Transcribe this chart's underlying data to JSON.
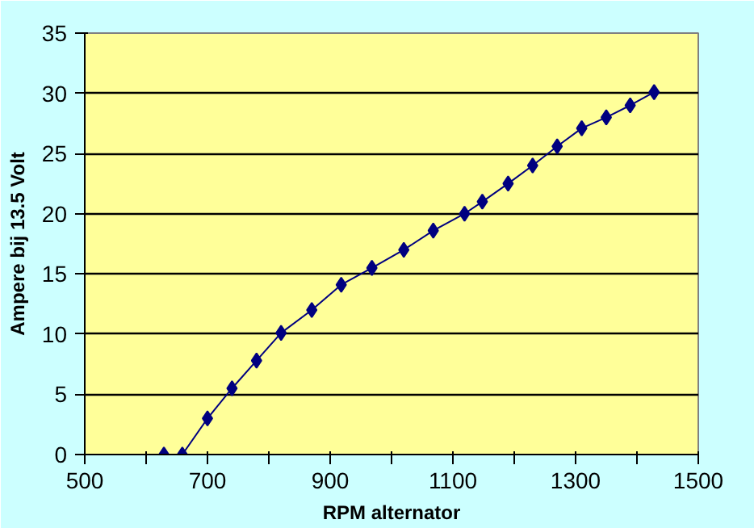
{
  "chart_data": {
    "type": "line",
    "xlabel": "RPM alternator",
    "ylabel": "Ampere bij 13.5 Volt",
    "x": [
      629,
      659,
      700,
      740,
      780,
      820,
      870,
      918,
      968,
      1020,
      1068,
      1119,
      1148,
      1190,
      1230,
      1270,
      1310,
      1350,
      1389,
      1428
    ],
    "series": [
      {
        "color": "#000080",
        "values": [
          0,
          0,
          3.0,
          5.5,
          7.8,
          10.1,
          12.0,
          14.1,
          15.5,
          17.0,
          18.6,
          20.0,
          21.0,
          22.5,
          24.0,
          25.6,
          27.1,
          28.0,
          29.0,
          30.1
        ]
      }
    ],
    "xlim": [
      500,
      1500
    ],
    "xticks": [
      500,
      {
        "value": 600,
        "label": null
      },
      700,
      {
        "value": 800,
        "label": null
      },
      900,
      {
        "value": 1000,
        "label": null
      },
      1100,
      {
        "value": 1200,
        "label": null
      },
      1300,
      {
        "value": 1400,
        "label": null
      },
      1500
    ],
    "ylim": [
      0,
      35
    ],
    "yticks": [
      0,
      5,
      10,
      15,
      20,
      25,
      30,
      35
    ],
    "grid": "y",
    "marker": "diamond",
    "line_style": "solid"
  }
}
